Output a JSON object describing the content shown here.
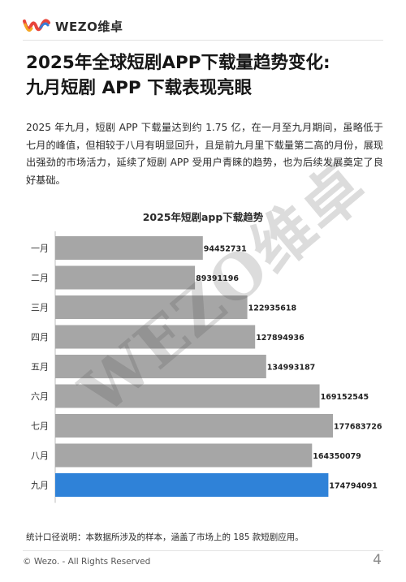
{
  "header": {
    "brand": "WEZO维卓"
  },
  "title": {
    "line1": "2025年全球短剧APP下载量趋势变化:",
    "line2": "九月短剧 APP 下载表现亮眼"
  },
  "body_text": "2025 年九月，短剧 APP 下载量达到约 1.75 亿，在一月至九月期间，虽略低于七月的峰值，但相较于八月有明显回升，且是前九月里下载量第二高的月份，展现出强劲的市场活力，延续了短剧 APP 受用户青睐的趋势，也为后续发展奠定了良好基础。",
  "watermark": "WEZO维卓",
  "chart_data": {
    "type": "bar",
    "orientation": "horizontal",
    "title": "2025年短剧app下载趋势",
    "categories": [
      "一月",
      "二月",
      "三月",
      "四月",
      "五月",
      "六月",
      "七月",
      "八月",
      "九月"
    ],
    "values": [
      94452731,
      89391196,
      122935618,
      127894936,
      134993187,
      169152545,
      177683726,
      164350079,
      174794091
    ],
    "value_labels": [
      "94452731",
      "89391196",
      "122935618",
      "127894936",
      "134993187",
      "169152545",
      "177683726",
      "164350079",
      "174794091"
    ],
    "xlim": [
      0,
      177683726
    ],
    "grid": false,
    "legend": "none",
    "colors": {
      "default": "#a6a6a6",
      "highlight": "#2f82d8"
    },
    "highlight_index": 8
  },
  "footnote": "统计口径说明：本数据所涉及的样本，涵盖了市场上的 185 款短剧应用。",
  "footer": {
    "copyright": "© Wezo. - All Rights Reserved",
    "page": "4"
  }
}
